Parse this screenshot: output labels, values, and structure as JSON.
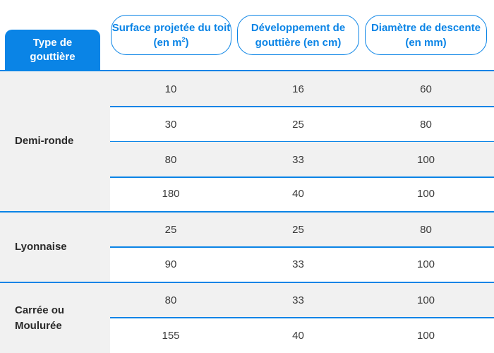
{
  "header": {
    "type_label": "Type de gouttière",
    "col1_label": "Surface projetée du toit (en m",
    "col1_sup": "2",
    "col1_close": ")",
    "col2_label": "Développement de gouttière (en cm)",
    "col3_label": "Diamètre de descente (en mm)"
  },
  "groups": [
    {
      "label": "Demi-ronde",
      "rows": [
        [
          "10",
          "16",
          "60"
        ],
        [
          "30",
          "25",
          "80"
        ],
        [
          "80",
          "33",
          "100"
        ],
        [
          "180",
          "40",
          "100"
        ]
      ]
    },
    {
      "label": "Lyonnaise",
      "rows": [
        [
          "25",
          "25",
          "80"
        ],
        [
          "90",
          "33",
          "100"
        ]
      ]
    },
    {
      "label": "Carrée ou Moulurée",
      "rows": [
        [
          "80",
          "33",
          "100"
        ],
        [
          "155",
          "40",
          "100"
        ]
      ]
    }
  ],
  "colors": {
    "accent": "#0a84e6",
    "shade": "#f1f1f1",
    "text": "#3a3a3a"
  }
}
